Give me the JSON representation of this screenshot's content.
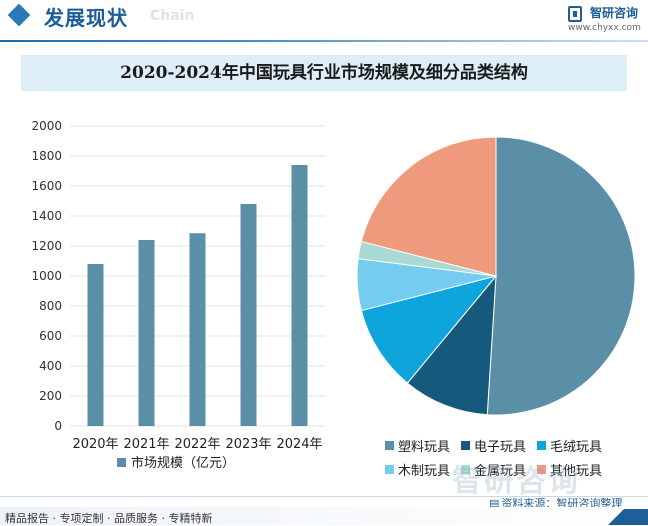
{
  "header": {
    "title": "发展现状",
    "subtitle": "Chain"
  },
  "logo": {
    "name": "智研咨询",
    "url": "www.chyxx.com"
  },
  "watermark": "智研咨询",
  "source": {
    "label": "资料来源：智研咨询整理"
  },
  "footer": {
    "text": "精品报告 · 专项定制 · 品质服务 · 专精特新"
  },
  "colors": {
    "bar": "#5b8fa8",
    "header_accent": "#1f5f99",
    "pie": [
      "#5b8fa8",
      "#155a7d",
      "#0ea5dd",
      "#74ccf0",
      "#a9d9d2",
      "#ef9a7c"
    ]
  },
  "chart_data": [
    {
      "type": "bar",
      "title": "2020-2024年中国玩具行业市场规模及细分品类结构",
      "categories": [
        "2020年",
        "2021年",
        "2022年",
        "2023年",
        "2024年"
      ],
      "series": [
        {
          "name": "市场规模（亿元）",
          "values": [
            1080,
            1240,
            1285,
            1480,
            1740
          ]
        }
      ],
      "yticks": [
        "0",
        "200",
        "400",
        "600",
        "800",
        "1000",
        "1200",
        "1400",
        "1600",
        "1800",
        "2000"
      ],
      "ylim": [
        0,
        2000
      ],
      "grid": true,
      "legend_position": "bottom"
    },
    {
      "type": "pie",
      "labels": [
        "塑料玩具",
        "电子玩具",
        "毛绒玩具",
        "木制玩具",
        "金属玩具",
        "其他玩具"
      ],
      "values": [
        51,
        10,
        10,
        6,
        2,
        21
      ],
      "legend_position": "bottom"
    }
  ]
}
